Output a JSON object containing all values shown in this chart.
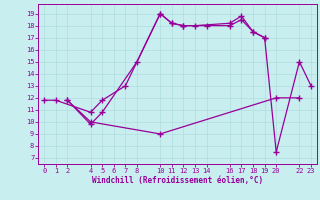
{
  "xlabel": "Windchill (Refroidissement éolien,°C)",
  "background_color": "#c8eef0",
  "line_color": "#990099",
  "xlim": [
    -0.5,
    23.5
  ],
  "ylim": [
    6.5,
    19.8
  ],
  "xticks": [
    0,
    1,
    2,
    4,
    5,
    6,
    7,
    8,
    10,
    11,
    12,
    13,
    14,
    16,
    17,
    18,
    19,
    20,
    22,
    23
  ],
  "yticks": [
    7,
    8,
    9,
    10,
    11,
    12,
    13,
    14,
    15,
    16,
    17,
    18,
    19
  ],
  "line1_x": [
    0,
    1,
    4,
    5,
    7,
    10,
    11,
    12,
    13,
    16,
    17,
    18,
    19
  ],
  "line1_y": [
    11.8,
    11.8,
    10.8,
    11.8,
    13.0,
    19.0,
    18.2,
    18.0,
    18.0,
    18.2,
    18.8,
    17.5,
    17.0
  ],
  "line2_x": [
    2,
    4,
    5,
    8,
    10,
    11,
    12,
    14,
    16,
    17,
    18,
    19,
    20,
    22,
    23
  ],
  "line2_y": [
    11.8,
    9.8,
    10.8,
    15.0,
    19.0,
    18.2,
    18.0,
    18.0,
    18.0,
    18.5,
    17.5,
    17.0,
    7.5,
    15.0,
    13.0
  ],
  "line3_x": [
    2,
    4,
    10,
    20,
    22
  ],
  "line3_y": [
    11.8,
    10.0,
    9.0,
    12.0,
    12.0
  ],
  "marker": "+",
  "markersize": 4,
  "linewidth": 0.9,
  "tick_fontsize": 5,
  "xlabel_fontsize": 5.5,
  "grid_color": "#b0dde0",
  "spine_color": "#990099"
}
